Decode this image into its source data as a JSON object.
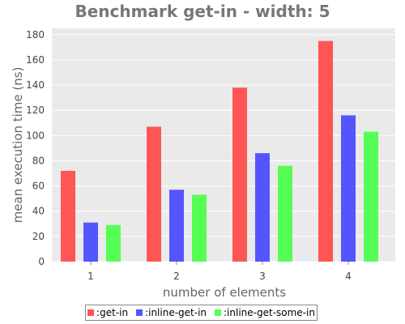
{
  "chart_data": {
    "type": "bar",
    "title": "Benchmark get-in - width: 5",
    "xlabel": "number of elements",
    "ylabel": "mean execution time (ns)",
    "categories": [
      "1",
      "2",
      "3",
      "4"
    ],
    "ylim": [
      0,
      185
    ],
    "yticks": [
      0,
      20,
      40,
      60,
      80,
      100,
      120,
      140,
      160,
      180
    ],
    "grid": true,
    "legend_position": "bottom",
    "series": [
      {
        "name": ":get-in",
        "color": "#FF5555",
        "values": [
          72,
          107,
          138,
          175
        ]
      },
      {
        "name": ":inline-get-in",
        "color": "#5555FF",
        "values": [
          31,
          57,
          86,
          116
        ]
      },
      {
        "name": ":inline-get-some-in",
        "color": "#55FF55",
        "values": [
          29,
          53,
          76,
          103
        ]
      }
    ]
  }
}
